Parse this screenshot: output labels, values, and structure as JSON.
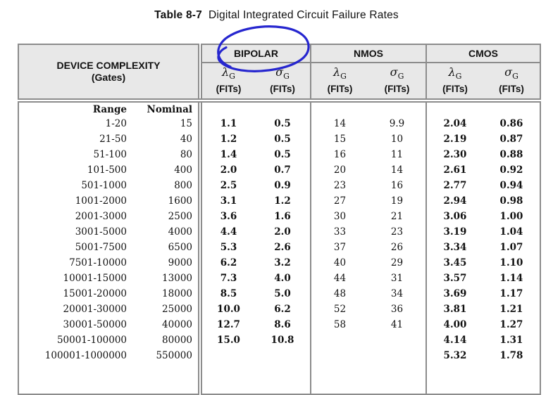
{
  "page": {
    "title_label": "Table 8-7",
    "title_text": "Digital Integrated Circuit Failure Rates"
  },
  "annotation": {
    "type": "hand-drawn-ellipse",
    "target": "BIPOLAR",
    "color": "#2626cf"
  },
  "colors": {
    "border_gray": "#8c8c8c",
    "header_bg": "#e8e8e8",
    "annotation_blue": "#2626cf"
  },
  "table": {
    "corner_header": {
      "line1": "DEVICE COMPLEXITY",
      "line2": "(Gates)"
    },
    "groups": [
      {
        "name": "BIPOLAR"
      },
      {
        "name": "NMOS"
      },
      {
        "name": "CMOS"
      }
    ],
    "subheader": {
      "lambda": "λ",
      "sigma": "σ",
      "subscript": "G",
      "units": "(FITs)"
    },
    "range_label": "Range",
    "nominal_label": "Nominal",
    "columns": [
      "range",
      "nominal",
      "bipolar_lambda_fits",
      "bipolar_sigma_fits",
      "nmos_lambda_fits",
      "nmos_sigma_fits",
      "cmos_lambda_fits",
      "cmos_sigma_fits"
    ],
    "rows": [
      [
        "1-20",
        "15",
        "1.1",
        "0.5",
        "14",
        "9.9",
        "2.04",
        "0.86"
      ],
      [
        "21-50",
        "40",
        "1.2",
        "0.5",
        "15",
        "10",
        "2.19",
        "0.87"
      ],
      [
        "51-100",
        "80",
        "1.4",
        "0.5",
        "16",
        "11",
        "2.30",
        "0.88"
      ],
      [
        "101-500",
        "400",
        "2.0",
        "0.7",
        "20",
        "14",
        "2.61",
        "0.92"
      ],
      [
        "501-1000",
        "800",
        "2.5",
        "0.9",
        "23",
        "16",
        "2.77",
        "0.94"
      ],
      [
        "1001-2000",
        "1600",
        "3.1",
        "1.2",
        "27",
        "19",
        "2.94",
        "0.98"
      ],
      [
        "2001-3000",
        "2500",
        "3.6",
        "1.6",
        "30",
        "21",
        "3.06",
        "1.00"
      ],
      [
        "3001-5000",
        "4000",
        "4.4",
        "2.0",
        "33",
        "23",
        "3.19",
        "1.04"
      ],
      [
        "5001-7500",
        "6500",
        "5.3",
        "2.6",
        "37",
        "26",
        "3.34",
        "1.07"
      ],
      [
        "7501-10000",
        "9000",
        "6.2",
        "3.2",
        "40",
        "29",
        "3.45",
        "1.10"
      ],
      [
        "10001-15000",
        "13000",
        "7.3",
        "4.0",
        "44",
        "31",
        "3.57",
        "1.14"
      ],
      [
        "15001-20000",
        "18000",
        "8.5",
        "5.0",
        "48",
        "34",
        "3.69",
        "1.17"
      ],
      [
        "20001-30000",
        "25000",
        "10.0",
        "6.2",
        "52",
        "36",
        "3.81",
        "1.21"
      ],
      [
        "30001-50000",
        "40000",
        "12.7",
        "8.6",
        "58",
        "41",
        "4.00",
        "1.27"
      ],
      [
        "50001-100000",
        "80000",
        "15.0",
        "10.8",
        "",
        "",
        "4.14",
        "1.31"
      ],
      [
        "100001-1000000",
        "550000",
        "",
        "",
        "",
        "",
        "5.32",
        "1.78"
      ]
    ]
  }
}
